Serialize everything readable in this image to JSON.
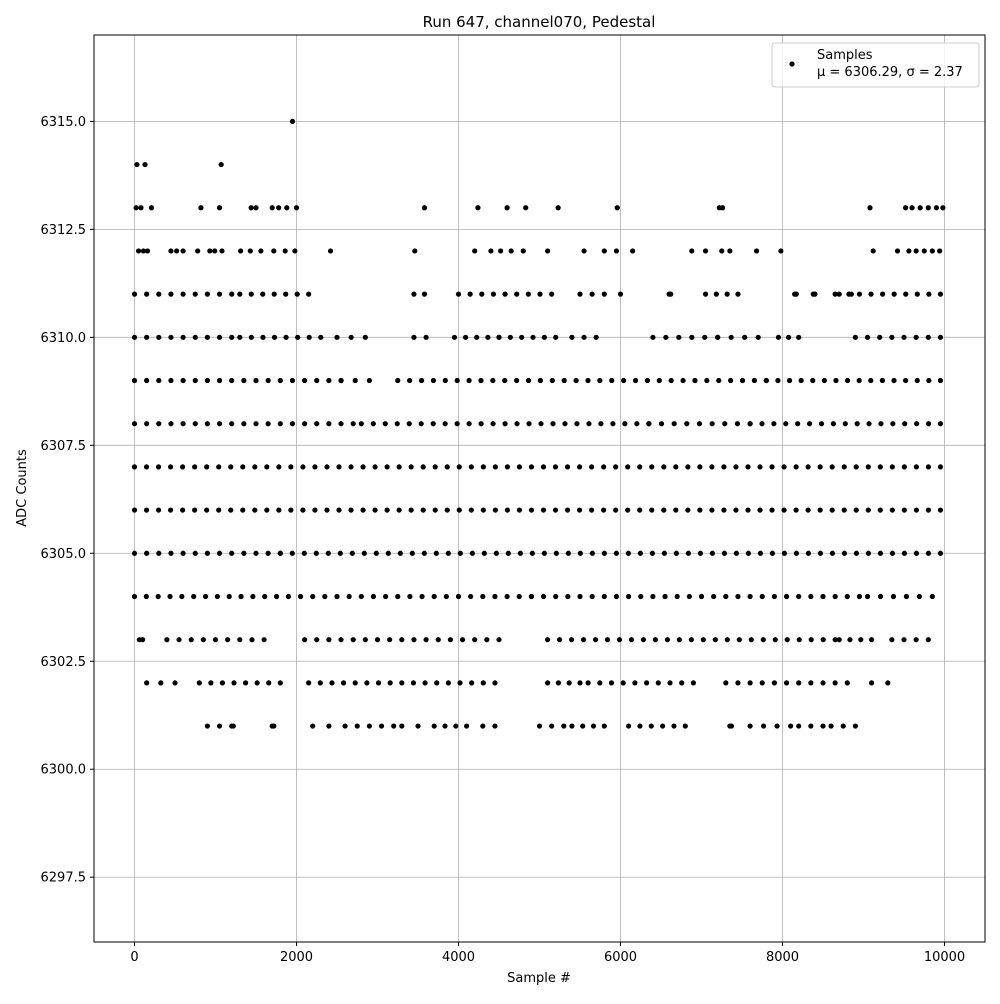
{
  "chart_data": {
    "type": "scatter",
    "title": "Run 647, channel070, Pedestal",
    "xlabel": "Sample #",
    "ylabel": "ADC Counts",
    "xlim": [
      -500,
      10500
    ],
    "ylim": [
      6296.0,
      6317.0
    ],
    "xticks": [
      0,
      2000,
      4000,
      6000,
      8000,
      10000
    ],
    "xtick_labels": [
      "0",
      "2000",
      "4000",
      "6000",
      "8000",
      "10000"
    ],
    "yticks": [
      6297.5,
      6300.0,
      6302.5,
      6305.0,
      6307.5,
      6310.0,
      6312.5,
      6315.0
    ],
    "ytick_labels": [
      "6297.5",
      "6300.0",
      "6302.5",
      "6305.0",
      "6307.5",
      "6310.0",
      "6312.5",
      "6315.0"
    ],
    "grid": true,
    "legend": {
      "placement": "top-right",
      "entries": [
        {
          "name": "Samples",
          "stats": "μ = 6306.29, σ = 2.37",
          "marker_color": "#000000"
        }
      ]
    },
    "series": [
      {
        "name": "Samples",
        "color": "#000000",
        "marker": "circle",
        "summary": {
          "count": 10000,
          "mean": 6306.29,
          "std": 2.37
        },
        "points": [
          [
            1950,
            6315
          ],
          [
            30,
            6314
          ],
          [
            130,
            6314
          ],
          [
            1070,
            6314
          ],
          [
            20,
            6313
          ],
          [
            80,
            6313
          ],
          [
            210,
            6313
          ],
          [
            820,
            6313
          ],
          [
            1050,
            6313
          ],
          [
            1440,
            6313
          ],
          [
            1500,
            6313
          ],
          [
            1700,
            6313
          ],
          [
            1780,
            6313
          ],
          [
            1880,
            6313
          ],
          [
            2000,
            6313
          ],
          [
            3580,
            6313
          ],
          [
            4240,
            6313
          ],
          [
            4600,
            6313
          ],
          [
            4830,
            6313
          ],
          [
            5230,
            6313
          ],
          [
            5960,
            6313
          ],
          [
            7220,
            6313
          ],
          [
            7260,
            6313
          ],
          [
            9080,
            6313
          ],
          [
            9520,
            6313
          ],
          [
            9600,
            6313
          ],
          [
            9700,
            6313
          ],
          [
            9800,
            6313
          ],
          [
            9900,
            6313
          ],
          [
            9980,
            6313
          ],
          [
            50,
            6312
          ],
          [
            110,
            6312
          ],
          [
            160,
            6312
          ],
          [
            450,
            6312
          ],
          [
            520,
            6312
          ],
          [
            600,
            6312
          ],
          [
            780,
            6312
          ],
          [
            930,
            6312
          ],
          [
            990,
            6312
          ],
          [
            1080,
            6312
          ],
          [
            1310,
            6312
          ],
          [
            1430,
            6312
          ],
          [
            1560,
            6312
          ],
          [
            1720,
            6312
          ],
          [
            1860,
            6312
          ],
          [
            1980,
            6312
          ],
          [
            2420,
            6312
          ],
          [
            3460,
            6312
          ],
          [
            4200,
            6312
          ],
          [
            4400,
            6312
          ],
          [
            4520,
            6312
          ],
          [
            4650,
            6312
          ],
          [
            4800,
            6312
          ],
          [
            5100,
            6312
          ],
          [
            5550,
            6312
          ],
          [
            5800,
            6312
          ],
          [
            5950,
            6312
          ],
          [
            6150,
            6312
          ],
          [
            6880,
            6312
          ],
          [
            7050,
            6312
          ],
          [
            7250,
            6312
          ],
          [
            7350,
            6312
          ],
          [
            7680,
            6312
          ],
          [
            7980,
            6312
          ],
          [
            9120,
            6312
          ],
          [
            9420,
            6312
          ],
          [
            9560,
            6312
          ],
          [
            9650,
            6312
          ],
          [
            9750,
            6312
          ],
          [
            9850,
            6312
          ],
          [
            9940,
            6312
          ]
        ],
        "bands": [
          {
            "y": 6311,
            "x_ranges": [
              [
                0,
                1200
              ],
              [
                1300,
                2150
              ],
              [
                3450,
                3580
              ],
              [
                4000,
                5150
              ],
              [
                5500,
                5650
              ],
              [
                5800,
                6000
              ],
              [
                6600,
                6620
              ],
              [
                7050,
                7450
              ],
              [
                8150,
                8170
              ],
              [
                8380,
                8400
              ],
              [
                8650,
                8700
              ],
              [
                8820,
                8850
              ],
              [
                8950,
                9950
              ]
            ]
          },
          {
            "y": 6310,
            "x_ranges": [
              [
                0,
                1200
              ],
              [
                1300,
                2300
              ],
              [
                2500,
                2850
              ],
              [
                3450,
                3600
              ],
              [
                3950,
                4500
              ],
              [
                4500,
                5200
              ],
              [
                5400,
                5700
              ],
              [
                6400,
                7200
              ],
              [
                7200,
                7700
              ],
              [
                7950,
                8200
              ],
              [
                8900,
                9950
              ]
            ]
          },
          {
            "y": 6309,
            "x_ranges": [
              [
                0,
                2550
              ],
              [
                2550,
                2900
              ],
              [
                3250,
                7800
              ],
              [
                7800,
                9950
              ]
            ]
          },
          {
            "y": 6308,
            "x_ranges": [
              [
                0,
                2700
              ],
              [
                2800,
                6350
              ],
              [
                6350,
                7600
              ],
              [
                7600,
                9950
              ]
            ]
          },
          {
            "y": 6307,
            "x_ranges": [
              [
                0,
                9950
              ]
            ]
          },
          {
            "y": 6306,
            "x_ranges": [
              [
                0,
                9950
              ]
            ]
          },
          {
            "y": 6305,
            "x_ranges": [
              [
                0,
                1800
              ],
              [
                1800,
                9950
              ]
            ]
          },
          {
            "y": 6304,
            "x_ranges": [
              [
                0,
                1900
              ],
              [
                2050,
                4900
              ],
              [
                4900,
                8950
              ],
              [
                9050,
                9850
              ]
            ]
          },
          {
            "y": 6303,
            "x_ranges": [
              [
                60,
                100
              ],
              [
                400,
                700
              ],
              [
                850,
                1600
              ],
              [
                2100,
                4500
              ],
              [
                5100,
                8650
              ],
              [
                8700,
                9100
              ],
              [
                9350,
                9800
              ]
            ]
          },
          {
            "y": 6302,
            "x_ranges": [
              [
                150,
                500
              ],
              [
                800,
                1800
              ],
              [
                2150,
                4450
              ],
              [
                5100,
                5500
              ],
              [
                5600,
                6900
              ],
              [
                7300,
                8800
              ],
              [
                9100,
                9300
              ]
            ]
          },
          {
            "y": 6301,
            "x_ranges": [
              [
                900,
                1050
              ],
              [
                1200,
                1220
              ],
              [
                1700,
                1720
              ],
              [
                2200,
                2400
              ],
              [
                2600,
                3200
              ],
              [
                3300,
                3500
              ],
              [
                3700,
                4100
              ],
              [
                4300,
                4450
              ],
              [
                5000,
                5300
              ],
              [
                5400,
                5800
              ],
              [
                6100,
                6800
              ],
              [
                7350,
                7370
              ],
              [
                7600,
                8100
              ],
              [
                8200,
                8500
              ],
              [
                8600,
                8900
              ]
            ]
          }
        ]
      }
    ]
  }
}
